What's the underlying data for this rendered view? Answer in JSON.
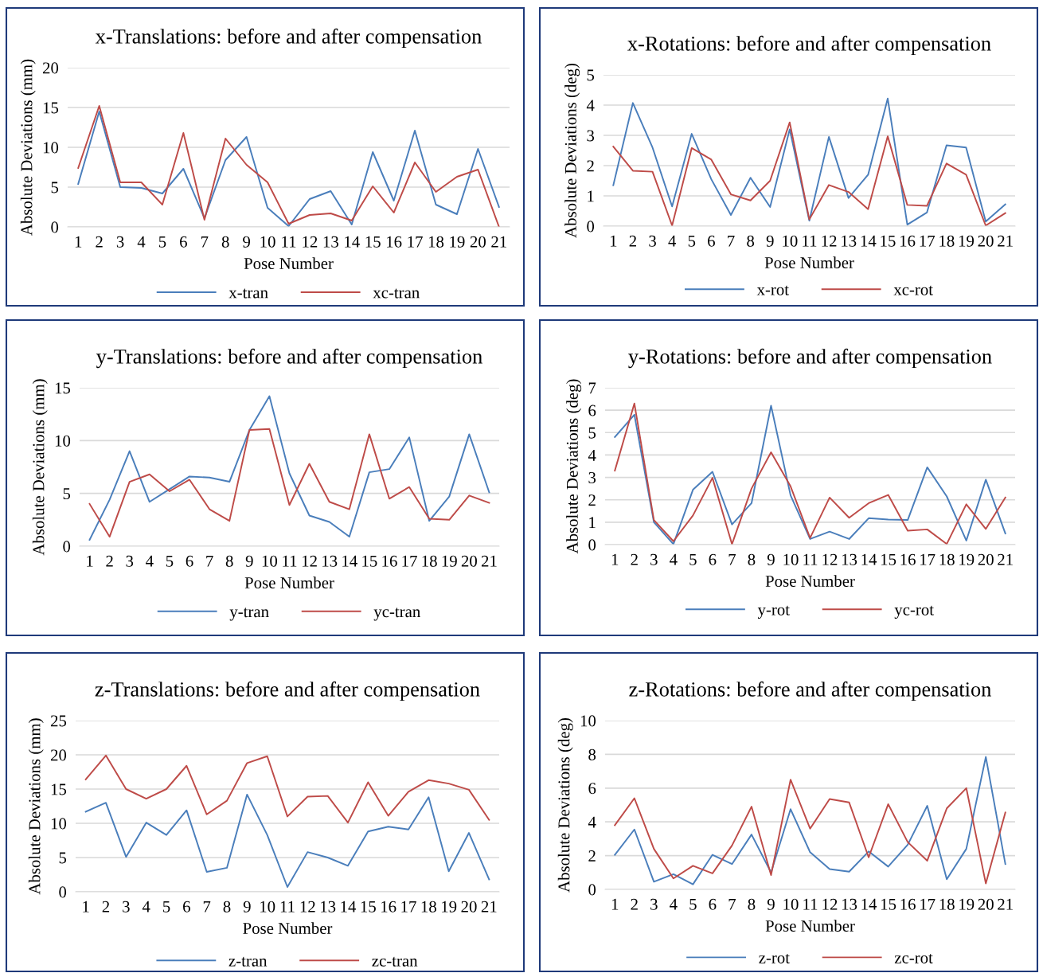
{
  "chart_data": [
    {
      "type": "line",
      "title": "x-Translations: before and after compensation",
      "xlabel": "Pose Number",
      "ylabel": "Absolute Deviations (mm)",
      "categories": [
        "1",
        "2",
        "3",
        "4",
        "5",
        "6",
        "7",
        "8",
        "9",
        "10",
        "11",
        "12",
        "13",
        "14",
        "15",
        "16",
        "17",
        "18",
        "19",
        "20",
        "21"
      ],
      "ylim": [
        0,
        20
      ],
      "yticks": [
        0,
        5,
        10,
        15,
        20
      ],
      "grid": "y",
      "legend": "bottom",
      "marker": "none",
      "line_style": "solid",
      "series": [
        {
          "name": "x-tran",
          "color": "#4a7ebb",
          "values": [
            5.4,
            14.5,
            5.0,
            4.9,
            4.2,
            7.3,
            1.1,
            8.4,
            11.3,
            2.4,
            0.1,
            3.5,
            4.5,
            0.3,
            9.4,
            3.3,
            12.1,
            2.8,
            1.6,
            9.8,
            2.5
          ]
        },
        {
          "name": "xc-tran",
          "color": "#be4b48",
          "values": [
            7.4,
            15.2,
            5.6,
            5.6,
            2.8,
            11.8,
            0.9,
            11.1,
            7.8,
            5.6,
            0.4,
            1.5,
            1.7,
            0.8,
            5.1,
            1.8,
            8.1,
            4.4,
            6.3,
            7.2,
            0.0
          ]
        }
      ]
    },
    {
      "type": "line",
      "title": "x-Rotations: before and after compensation",
      "xlabel": "Pose Number",
      "ylabel": "Absolute Deviations (deg)",
      "categories": [
        "1",
        "2",
        "3",
        "4",
        "5",
        "6",
        "7",
        "8",
        "9",
        "10",
        "11",
        "12",
        "13",
        "14",
        "15",
        "16",
        "17",
        "18",
        "19",
        "20",
        "21"
      ],
      "ylim": [
        0,
        5
      ],
      "yticks": [
        0,
        1,
        2,
        3,
        4,
        5
      ],
      "grid": "y",
      "legend": "bottom",
      "marker": "none",
      "line_style": "solid",
      "series": [
        {
          "name": "x-rot",
          "color": "#4a7ebb",
          "values": [
            1.35,
            4.07,
            2.6,
            0.65,
            3.05,
            1.55,
            0.37,
            1.6,
            0.63,
            3.2,
            0.18,
            2.95,
            0.93,
            1.7,
            4.22,
            0.05,
            0.45,
            2.67,
            2.6,
            0.15,
            0.72
          ]
        },
        {
          "name": "xc-rot",
          "color": "#be4b48",
          "values": [
            2.63,
            1.83,
            1.8,
            0.02,
            2.58,
            2.2,
            1.05,
            0.85,
            1.5,
            3.43,
            0.22,
            1.36,
            1.13,
            0.56,
            2.97,
            0.7,
            0.67,
            2.07,
            1.7,
            0.02,
            0.43
          ]
        }
      ]
    },
    {
      "type": "line",
      "title": "y-Translations: before and after compensation",
      "xlabel": "Pose Number",
      "ylabel": "Absolute Deviations (mm)",
      "categories": [
        "1",
        "2",
        "3",
        "4",
        "5",
        "6",
        "7",
        "8",
        "9",
        "10",
        "11",
        "12",
        "13",
        "14",
        "15",
        "16",
        "17",
        "18",
        "19",
        "20",
        "21"
      ],
      "ylim": [
        0,
        15
      ],
      "yticks": [
        0,
        5,
        10,
        15
      ],
      "grid": "y",
      "legend": "bottom",
      "marker": "none",
      "line_style": "solid",
      "series": [
        {
          "name": "y-tran",
          "color": "#4a7ebb",
          "values": [
            0.6,
            4.4,
            9.0,
            4.2,
            5.4,
            6.6,
            6.5,
            6.1,
            11.0,
            14.2,
            6.9,
            2.9,
            2.3,
            0.9,
            7.0,
            7.3,
            10.3,
            2.4,
            4.7,
            10.6,
            5.1
          ]
        },
        {
          "name": "yc-tran",
          "color": "#be4b48",
          "values": [
            4.0,
            0.9,
            6.1,
            6.8,
            5.2,
            6.3,
            3.5,
            2.4,
            11.0,
            11.1,
            3.9,
            7.8,
            4.2,
            3.5,
            10.6,
            4.5,
            5.6,
            2.6,
            2.5,
            4.8,
            4.1
          ]
        }
      ]
    },
    {
      "type": "line",
      "title": "y-Rotations: before and after compensation",
      "xlabel": "Pose Number",
      "ylabel": "Absolute Deviations (deg)",
      "categories": [
        "1",
        "2",
        "3",
        "4",
        "5",
        "6",
        "7",
        "8",
        "9",
        "10",
        "11",
        "12",
        "13",
        "14",
        "15",
        "16",
        "17",
        "18",
        "19",
        "20",
        "21"
      ],
      "ylim": [
        0,
        7
      ],
      "yticks": [
        0,
        1,
        2,
        3,
        4,
        5,
        6,
        7
      ],
      "grid": "y",
      "legend": "bottom",
      "marker": "none",
      "line_style": "solid",
      "series": [
        {
          "name": "y-rot",
          "color": "#4a7ebb",
          "values": [
            4.8,
            5.8,
            1.0,
            0.02,
            2.45,
            3.25,
            0.9,
            1.85,
            6.2,
            2.2,
            0.25,
            0.58,
            0.25,
            1.18,
            1.12,
            1.1,
            3.45,
            2.15,
            0.18,
            2.9,
            0.5
          ]
        },
        {
          "name": "yc-rot",
          "color": "#be4b48",
          "values": [
            3.3,
            6.3,
            1.1,
            0.15,
            1.3,
            2.98,
            0.02,
            2.5,
            4.12,
            2.6,
            0.3,
            2.1,
            1.2,
            1.85,
            2.22,
            0.62,
            0.68,
            0.03,
            1.8,
            0.7,
            2.1
          ]
        }
      ]
    },
    {
      "type": "line",
      "title": "z-Translations: before and after compensation",
      "xlabel": "Pose Number",
      "ylabel": "Absolute Deviations (mm)",
      "categories": [
        "1",
        "2",
        "3",
        "4",
        "5",
        "6",
        "7",
        "8",
        "9",
        "10",
        "11",
        "12",
        "13",
        "14",
        "15",
        "16",
        "17",
        "18",
        "19",
        "20",
        "21"
      ],
      "ylim": [
        0,
        25
      ],
      "yticks": [
        0,
        5,
        10,
        15,
        20,
        25
      ],
      "grid": "y",
      "legend": "bottom",
      "marker": "none",
      "line_style": "solid",
      "series": [
        {
          "name": "z-tran",
          "color": "#4a7ebb",
          "values": [
            11.7,
            13.0,
            5.1,
            10.1,
            8.3,
            11.9,
            2.9,
            3.5,
            14.2,
            8.3,
            0.7,
            5.8,
            5.0,
            3.8,
            8.8,
            9.5,
            9.1,
            13.8,
            3.0,
            8.6,
            1.8
          ]
        },
        {
          "name": "zc-tran",
          "color": "#be4b48",
          "values": [
            16.4,
            19.9,
            15.0,
            13.6,
            15.0,
            18.4,
            11.3,
            13.3,
            18.8,
            19.8,
            11.0,
            13.9,
            14.0,
            10.1,
            16.0,
            11.1,
            14.6,
            16.3,
            15.8,
            14.9,
            10.5
          ]
        }
      ]
    },
    {
      "type": "line",
      "title": "z-Rotations: before and after compensation",
      "xlabel": "Pose Number",
      "ylabel": "Absolute Deviations (deg)",
      "categories": [
        "1",
        "2",
        "3",
        "4",
        "5",
        "6",
        "7",
        "8",
        "9",
        "10",
        "11",
        "12",
        "13",
        "14",
        "15",
        "16",
        "17",
        "18",
        "19",
        "20",
        "21"
      ],
      "ylim": [
        0,
        10
      ],
      "yticks": [
        0,
        2,
        4,
        6,
        8,
        10
      ],
      "grid": "y",
      "legend": "bottom",
      "marker": "none",
      "line_style": "solid",
      "series": [
        {
          "name": "z-rot",
          "color": "#4a7ebb",
          "values": [
            2.05,
            3.55,
            0.45,
            0.9,
            0.3,
            2.05,
            1.5,
            3.25,
            1.0,
            4.75,
            2.2,
            1.2,
            1.05,
            2.25,
            1.35,
            2.65,
            4.95,
            0.6,
            2.4,
            7.85,
            1.5
          ]
        },
        {
          "name": "zc-rot",
          "color": "#be4b48",
          "values": [
            3.8,
            5.4,
            2.4,
            0.65,
            1.4,
            0.95,
            2.6,
            4.9,
            0.85,
            6.5,
            3.6,
            5.35,
            5.15,
            1.9,
            5.05,
            2.8,
            1.7,
            4.8,
            6.0,
            0.35,
            4.55
          ]
        }
      ]
    }
  ]
}
